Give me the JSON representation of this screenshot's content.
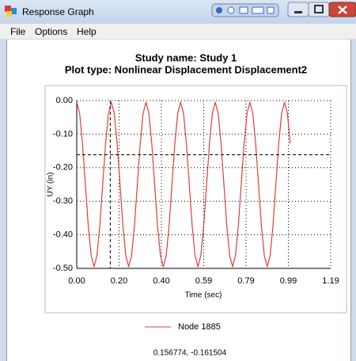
{
  "window": {
    "title": "Response Graph",
    "menu": [
      "File",
      "Options",
      "Help"
    ]
  },
  "chart_data": {
    "type": "line",
    "title": "Study name: Study 1",
    "subtitle": "Plot type: Nonlinear Displacement Displacement2",
    "x_label": "Time (sec)",
    "y_label": "UY (in)",
    "x": [
      0,
      0.0135,
      0.027,
      0.0405,
      0.054,
      0.0675,
      0.081,
      0.0945,
      0.108,
      0.1215,
      0.135,
      0.1485,
      0.162,
      0.1755,
      0.189,
      0.2025,
      0.216,
      0.2295,
      0.243,
      0.2565,
      0.27,
      0.2835,
      0.297,
      0.3105,
      0.324,
      0.3375,
      0.351,
      0.3645,
      0.378,
      0.3915,
      0.405,
      0.4185,
      0.432,
      0.4455,
      0.459,
      0.4725,
      0.486,
      0.4995,
      0.513,
      0.5265,
      0.54,
      0.5535,
      0.567,
      0.5805,
      0.594,
      0.6075,
      0.621,
      0.6345,
      0.648,
      0.6615,
      0.675,
      0.6885,
      0.702,
      0.7155,
      0.729,
      0.7425,
      0.756,
      0.7695,
      0.783,
      0.7965,
      0.81,
      0.8235,
      0.837,
      0.8505,
      0.864,
      0.8775,
      0.891,
      0.9045,
      0.918,
      0.9315,
      0.945,
      0.9585,
      0.972,
      0.9855,
      0.999
    ],
    "series": [
      {
        "name": "Node 1885",
        "color": "#e03c3c",
        "values": [
          -0.005,
          -0.038,
          -0.128,
          -0.25,
          -0.373,
          -0.462,
          -0.495,
          -0.462,
          -0.373,
          -0.25,
          -0.128,
          -0.038,
          -0.005,
          -0.038,
          -0.128,
          -0.25,
          -0.373,
          -0.462,
          -0.495,
          -0.462,
          -0.373,
          -0.25,
          -0.128,
          -0.038,
          -0.005,
          -0.038,
          -0.128,
          -0.25,
          -0.373,
          -0.462,
          -0.495,
          -0.462,
          -0.373,
          -0.25,
          -0.128,
          -0.038,
          -0.005,
          -0.038,
          -0.128,
          -0.25,
          -0.373,
          -0.462,
          -0.495,
          -0.462,
          -0.373,
          -0.25,
          -0.128,
          -0.038,
          -0.005,
          -0.038,
          -0.128,
          -0.25,
          -0.373,
          -0.462,
          -0.495,
          -0.462,
          -0.373,
          -0.25,
          -0.128,
          -0.038,
          -0.005,
          -0.038,
          -0.128,
          -0.25,
          -0.373,
          -0.462,
          -0.495,
          -0.462,
          -0.373,
          -0.25,
          -0.128,
          -0.038,
          -0.005,
          -0.038,
          -0.128
        ]
      }
    ],
    "xlim": [
      0,
      1.188
    ],
    "xticks": [
      {
        "value": 0,
        "label": "0.00"
      },
      {
        "value": 0.198,
        "label": "0.20"
      },
      {
        "value": 0.396,
        "label": "0.40"
      },
      {
        "value": 0.594,
        "label": "0.59"
      },
      {
        "value": 0.792,
        "label": "0.79"
      },
      {
        "value": 0.99,
        "label": "0.99"
      },
      {
        "value": 1.188,
        "label": "1.19"
      }
    ],
    "ylim": [
      -0.5,
      0
    ],
    "yticks": [
      {
        "value": 0,
        "label": "0.00"
      },
      {
        "value": -0.1,
        "label": "-0.10"
      },
      {
        "value": -0.2,
        "label": "-0.20"
      },
      {
        "value": -0.3,
        "label": "-0.30"
      },
      {
        "value": -0.4,
        "label": "-0.40"
      },
      {
        "value": -0.5,
        "label": "-0.50"
      }
    ],
    "grid": true,
    "cursor": {
      "x": 0.156774,
      "y": -0.161504,
      "label": "0.156774, -0.161504"
    }
  }
}
